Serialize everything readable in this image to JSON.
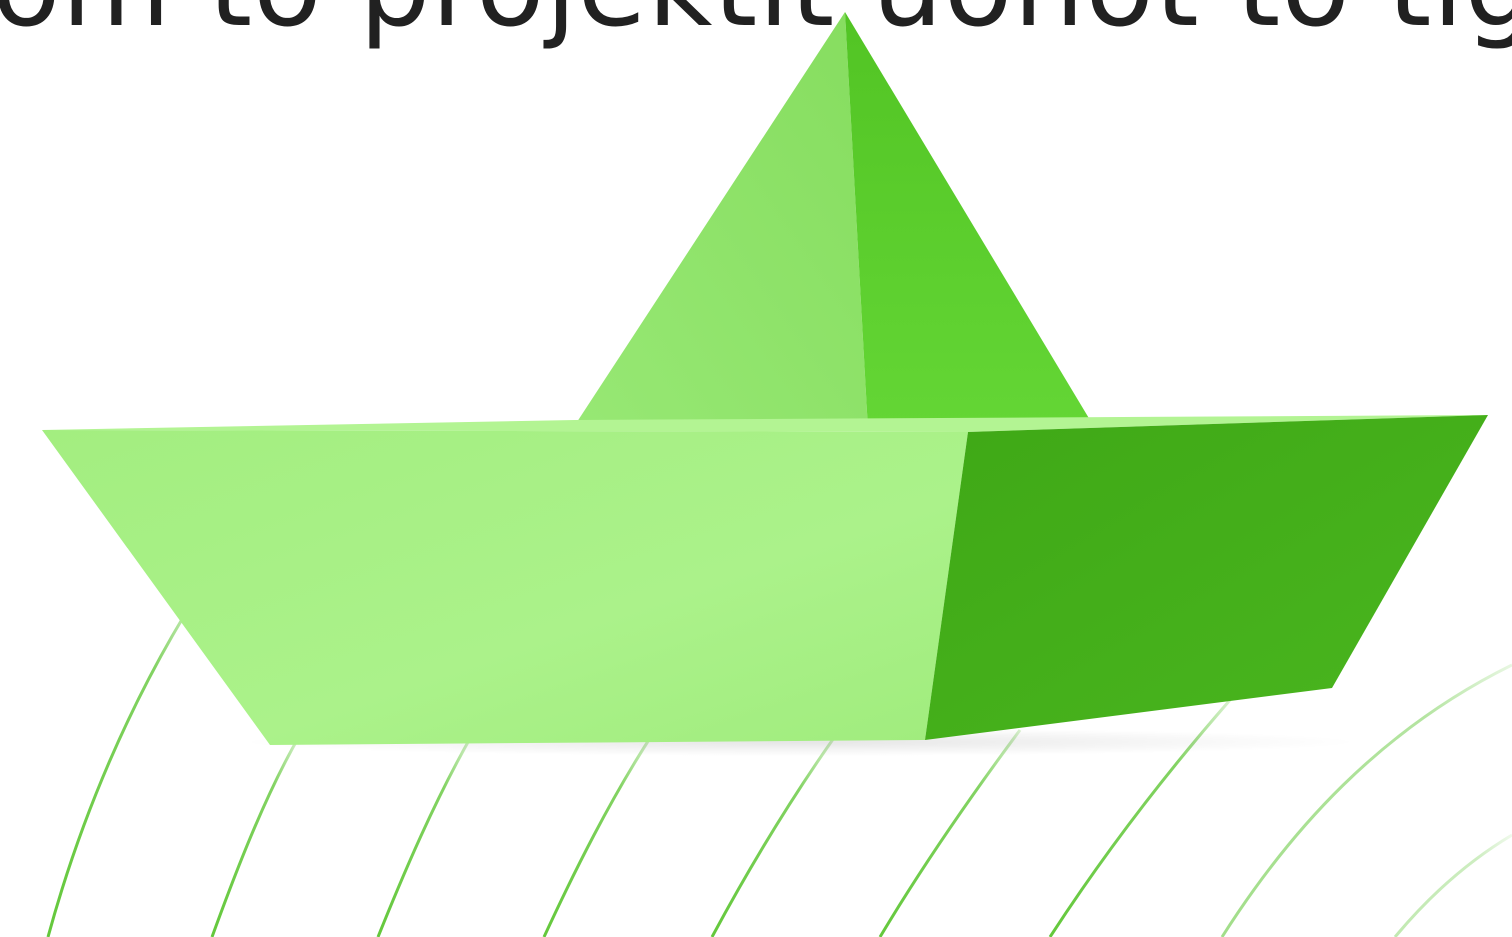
{
  "hero": {
    "headline": "om to projektit uohot to tig"
  },
  "illustration": {
    "name": "paper-boat",
    "waves": "wave-lines",
    "colors": {
      "boat_light": "#a9f287",
      "boat_mid": "#8fe46a",
      "boat_dark": "#42ad18",
      "sail_dark": "#5ccd2c",
      "wave_stroke": "#64c83c"
    }
  }
}
